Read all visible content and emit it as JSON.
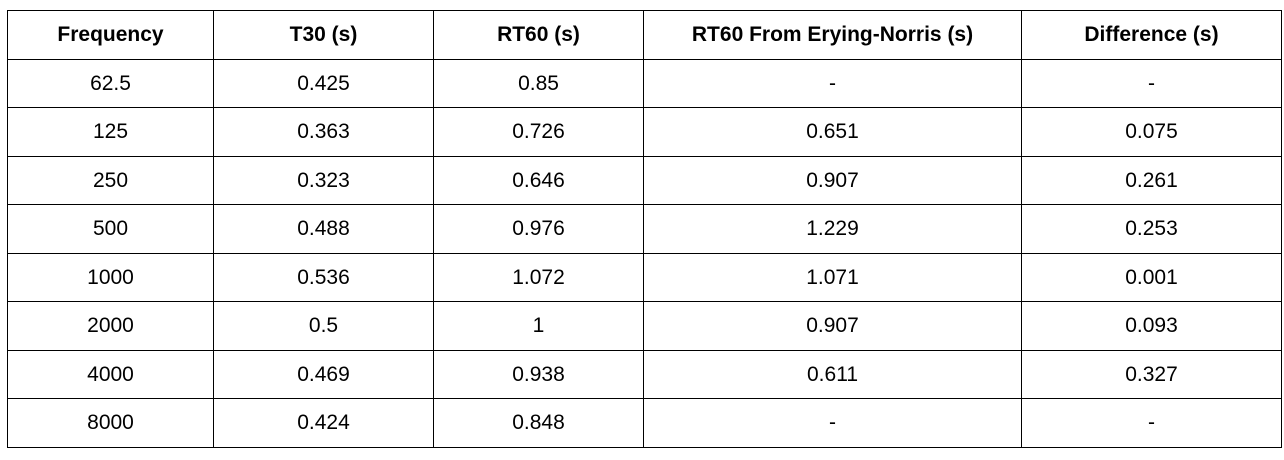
{
  "table": {
    "headers": [
      "Frequency",
      "T30 (s)",
      "RT60 (s)",
      "RT60 From Erying-Norris (s)",
      "Difference (s)"
    ],
    "rows": [
      [
        "62.5",
        "0.425",
        "0.85",
        "-",
        "-"
      ],
      [
        "125",
        "0.363",
        "0.726",
        "0.651",
        "0.075"
      ],
      [
        "250",
        "0.323",
        "0.646",
        "0.907",
        "0.261"
      ],
      [
        "500",
        "0.488",
        "0.976",
        "1.229",
        "0.253"
      ],
      [
        "1000",
        "0.536",
        "1.072",
        "1.071",
        "0.001"
      ],
      [
        "2000",
        "0.5",
        "1",
        "0.907",
        "0.093"
      ],
      [
        "4000",
        "0.469",
        "0.938",
        "0.611",
        "0.327"
      ],
      [
        "8000",
        "0.424",
        "0.848",
        "-",
        "-"
      ]
    ]
  }
}
